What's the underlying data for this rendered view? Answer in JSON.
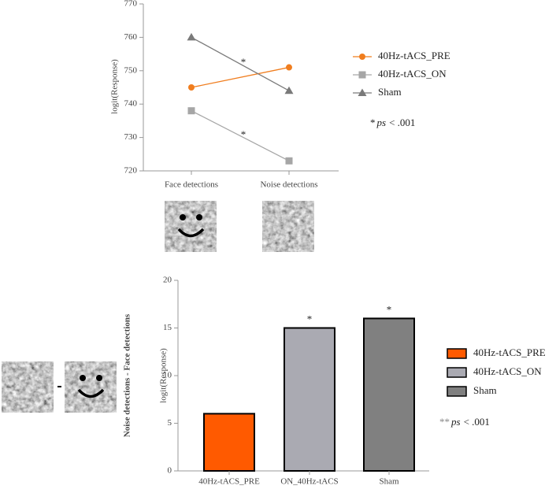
{
  "chart_data": [
    {
      "type": "line",
      "y_label": "logit(Response)",
      "categories": [
        "Face detections",
        "Noise detections"
      ],
      "series": [
        {
          "name": "40Hz-tACS_PRE",
          "color": "#f07d1e",
          "marker": "circle",
          "values": [
            745,
            751
          ]
        },
        {
          "name": "40Hz-tACS_ON",
          "color": "#a6a6a6",
          "marker": "square",
          "values": [
            738,
            723
          ]
        },
        {
          "name": "Sham",
          "color": "#7a7a7a",
          "marker": "triangle",
          "values": [
            760,
            744
          ]
        }
      ],
      "ylim": [
        720,
        770
      ],
      "yticks": [
        720,
        730,
        740,
        750,
        760,
        770
      ],
      "annotations": [
        "*",
        "*"
      ],
      "note": {
        "marker": "*",
        "italic": "ps",
        "text": "< .001"
      }
    },
    {
      "type": "bar",
      "title": "Noise detections - Face detections",
      "y_label": "logit(Response)",
      "categories": [
        "40Hz-tACS_PRE",
        "ON_40Hz-tACS",
        "Sham"
      ],
      "values": [
        6,
        15,
        16
      ],
      "colors": [
        "#ff5a00",
        "#aaaab2",
        "#808080"
      ],
      "legend": [
        "40Hz-tACS_PRE",
        "40Hz-tACS_ON",
        "Sham"
      ],
      "value_annotations": [
        null,
        "*",
        "*"
      ],
      "ylim": [
        0,
        20
      ],
      "yticks": [
        0,
        5,
        10,
        15,
        20
      ],
      "note": {
        "marker": "**",
        "italic": "ps",
        "text": "< .001"
      }
    }
  ]
}
